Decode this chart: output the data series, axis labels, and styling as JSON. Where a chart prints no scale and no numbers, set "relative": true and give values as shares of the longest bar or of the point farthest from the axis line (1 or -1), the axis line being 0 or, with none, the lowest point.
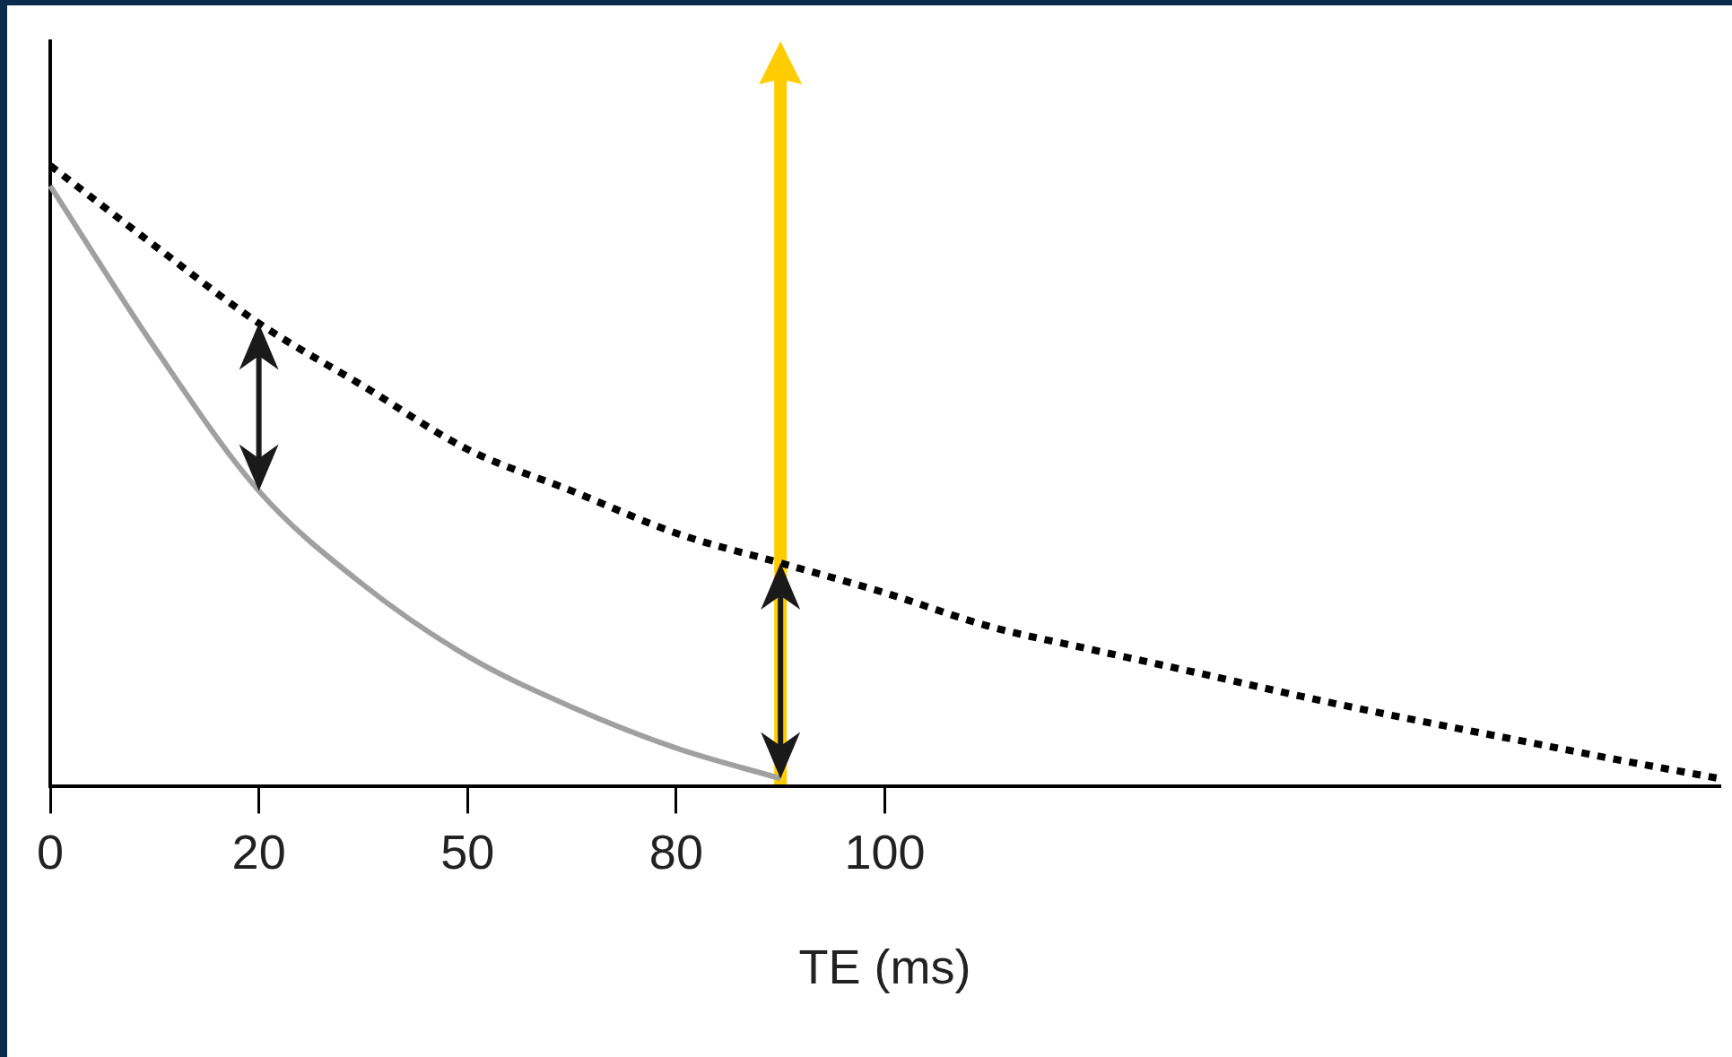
{
  "chart_data": {
    "type": "line",
    "xlabel": "TE (ms)",
    "relative": true,
    "tick_labels": "x",
    "marker": "none",
    "categories": [
      "0",
      null,
      "20",
      null,
      "50",
      null,
      "80",
      null,
      "100",
      null,
      null,
      null,
      null,
      null,
      null,
      null,
      null
    ],
    "series": [
      {
        "color": "#000000",
        "line_style": "dotted",
        "values": [
          1,
          0.871,
          0.746,
          0.645,
          0.543,
          0.476,
          0.408,
          0.36,
          0.312,
          0.258,
          0.22,
          0.183,
          0.145,
          0.11,
          0.077,
          0.044,
          0.013
        ]
      },
      {
        "color": "#a0a0a0",
        "line_style": "solid",
        "values": [
          0.967,
          0.707,
          0.476,
          0.325,
          0.21,
          0.128,
          0.062,
          0.013,
          null,
          null,
          null,
          null,
          null,
          null,
          null,
          null,
          null
        ]
      }
    ]
  }
}
